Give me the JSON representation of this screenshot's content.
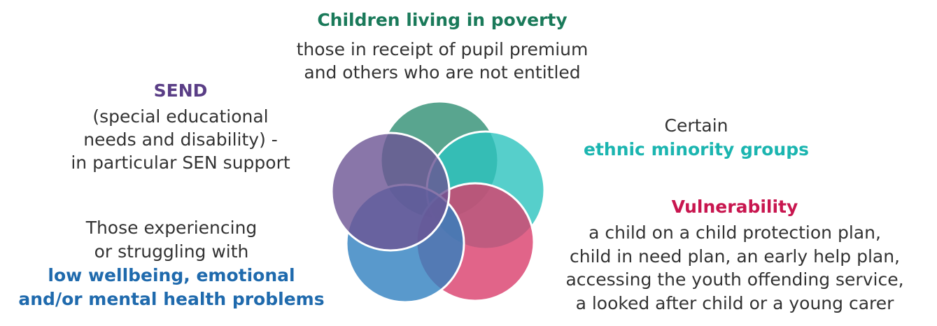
{
  "poverty": {
    "title": "Children living in poverty",
    "lines": [
      "those in receipt of pupil premium",
      "and others who are not entitled"
    ]
  },
  "send": {
    "title": "SEND",
    "lines": [
      "(special educational",
      "needs and disability) -",
      "in particular SEN support"
    ]
  },
  "ethnicity": {
    "lead": "Certain",
    "title": "ethnic minority groups"
  },
  "vulnerability": {
    "title": "Vulnerability",
    "lines": [
      "a child on a child protection plan,",
      "child in need plan, an early help plan,",
      "accessing the youth offending service,",
      "a looked after child or a young carer"
    ]
  },
  "wellbeing": {
    "lead": [
      "Those experiencing",
      "or struggling with"
    ],
    "title": [
      "low wellbeing, emotional",
      "and/or mental health problems"
    ]
  }
}
